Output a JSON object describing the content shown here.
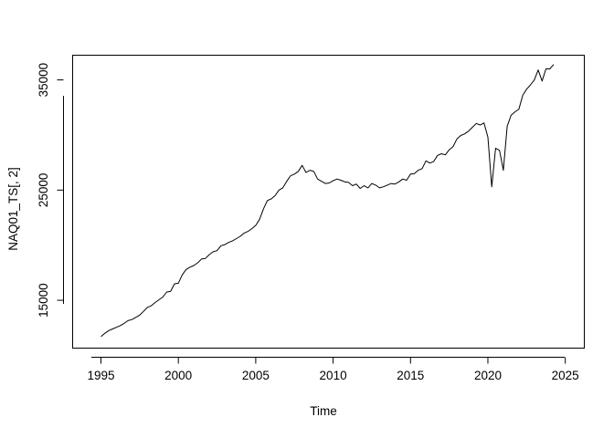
{
  "chart_data": {
    "type": "line",
    "xlabel": "Time",
    "ylabel": "NAQ01_TS[, 2]",
    "xlim": [
      1993.2,
      2026.2
    ],
    "ylim": [
      10700,
      37200
    ],
    "x_ticks": [
      1995,
      2000,
      2005,
      2010,
      2015,
      2020,
      2025
    ],
    "x_tick_labels": [
      "1995",
      "2000",
      "2005",
      "2010",
      "2015",
      "2020",
      "2025"
    ],
    "y_ticks": [
      15000,
      25000,
      35000
    ],
    "y_tick_labels": [
      "15000",
      "25000",
      "35000"
    ],
    "grid": false,
    "legend": "none",
    "series": [
      {
        "color": "#000000",
        "x": [
          1995.0,
          1995.25,
          1995.5,
          1995.75,
          1996.0,
          1996.25,
          1996.5,
          1996.75,
          1997.0,
          1997.25,
          1997.5,
          1997.75,
          1998.0,
          1998.25,
          1998.5,
          1998.75,
          1999.0,
          1999.25,
          1999.5,
          1999.75,
          2000.0,
          2000.25,
          2000.5,
          2000.75,
          2001.0,
          2001.25,
          2001.5,
          2001.75,
          2002.0,
          2002.25,
          2002.5,
          2002.75,
          2003.0,
          2003.25,
          2003.5,
          2003.75,
          2004.0,
          2004.25,
          2004.5,
          2004.75,
          2005.0,
          2005.25,
          2005.5,
          2005.75,
          2006.0,
          2006.25,
          2006.5,
          2006.75,
          2007.0,
          2007.25,
          2007.5,
          2007.75,
          2008.0,
          2008.25,
          2008.5,
          2008.75,
          2009.0,
          2009.25,
          2009.5,
          2009.75,
          2010.0,
          2010.25,
          2010.5,
          2010.75,
          2011.0,
          2011.25,
          2011.5,
          2011.75,
          2012.0,
          2012.25,
          2012.5,
          2012.75,
          2013.0,
          2013.25,
          2013.5,
          2013.75,
          2014.0,
          2014.25,
          2014.5,
          2014.75,
          2015.0,
          2015.25,
          2015.5,
          2015.75,
          2016.0,
          2016.25,
          2016.5,
          2016.75,
          2017.0,
          2017.25,
          2017.5,
          2017.75,
          2018.0,
          2018.25,
          2018.5,
          2018.75,
          2019.0,
          2019.25,
          2019.5,
          2019.75,
          2020.0,
          2020.25,
          2020.5,
          2020.75,
          2021.0,
          2021.25,
          2021.5,
          2021.75,
          2022.0,
          2022.25,
          2022.5,
          2022.75,
          2023.0,
          2023.25,
          2023.5,
          2023.75,
          2024.0,
          2024.25
        ],
        "values": [
          11700,
          12000,
          12250,
          12400,
          12550,
          12700,
          12900,
          13150,
          13250,
          13450,
          13650,
          14000,
          14350,
          14500,
          14800,
          15050,
          15300,
          15750,
          15800,
          16500,
          16550,
          17300,
          17800,
          18000,
          18150,
          18400,
          18750,
          18800,
          19150,
          19400,
          19500,
          19950,
          20050,
          20250,
          20400,
          20600,
          20800,
          21100,
          21250,
          21500,
          21800,
          22350,
          23300,
          24050,
          24200,
          24500,
          25000,
          25200,
          25800,
          26300,
          26450,
          26700,
          27250,
          26600,
          26800,
          26700,
          26000,
          25800,
          25600,
          25650,
          25850,
          26000,
          25900,
          25750,
          25700,
          25400,
          25550,
          25150,
          25400,
          25200,
          25600,
          25450,
          25200,
          25300,
          25450,
          25600,
          25550,
          25750,
          26000,
          25900,
          26450,
          26500,
          26800,
          26950,
          27650,
          27450,
          27600,
          28150,
          28300,
          28200,
          28650,
          28950,
          29650,
          29950,
          30100,
          30350,
          30700,
          31050,
          30900,
          31100,
          29800,
          25300,
          28800,
          28600,
          26800,
          30800,
          31800,
          32100,
          32350,
          33600,
          34150,
          34550,
          35000,
          35900,
          34900,
          36000,
          36000,
          36400
        ]
      }
    ]
  }
}
